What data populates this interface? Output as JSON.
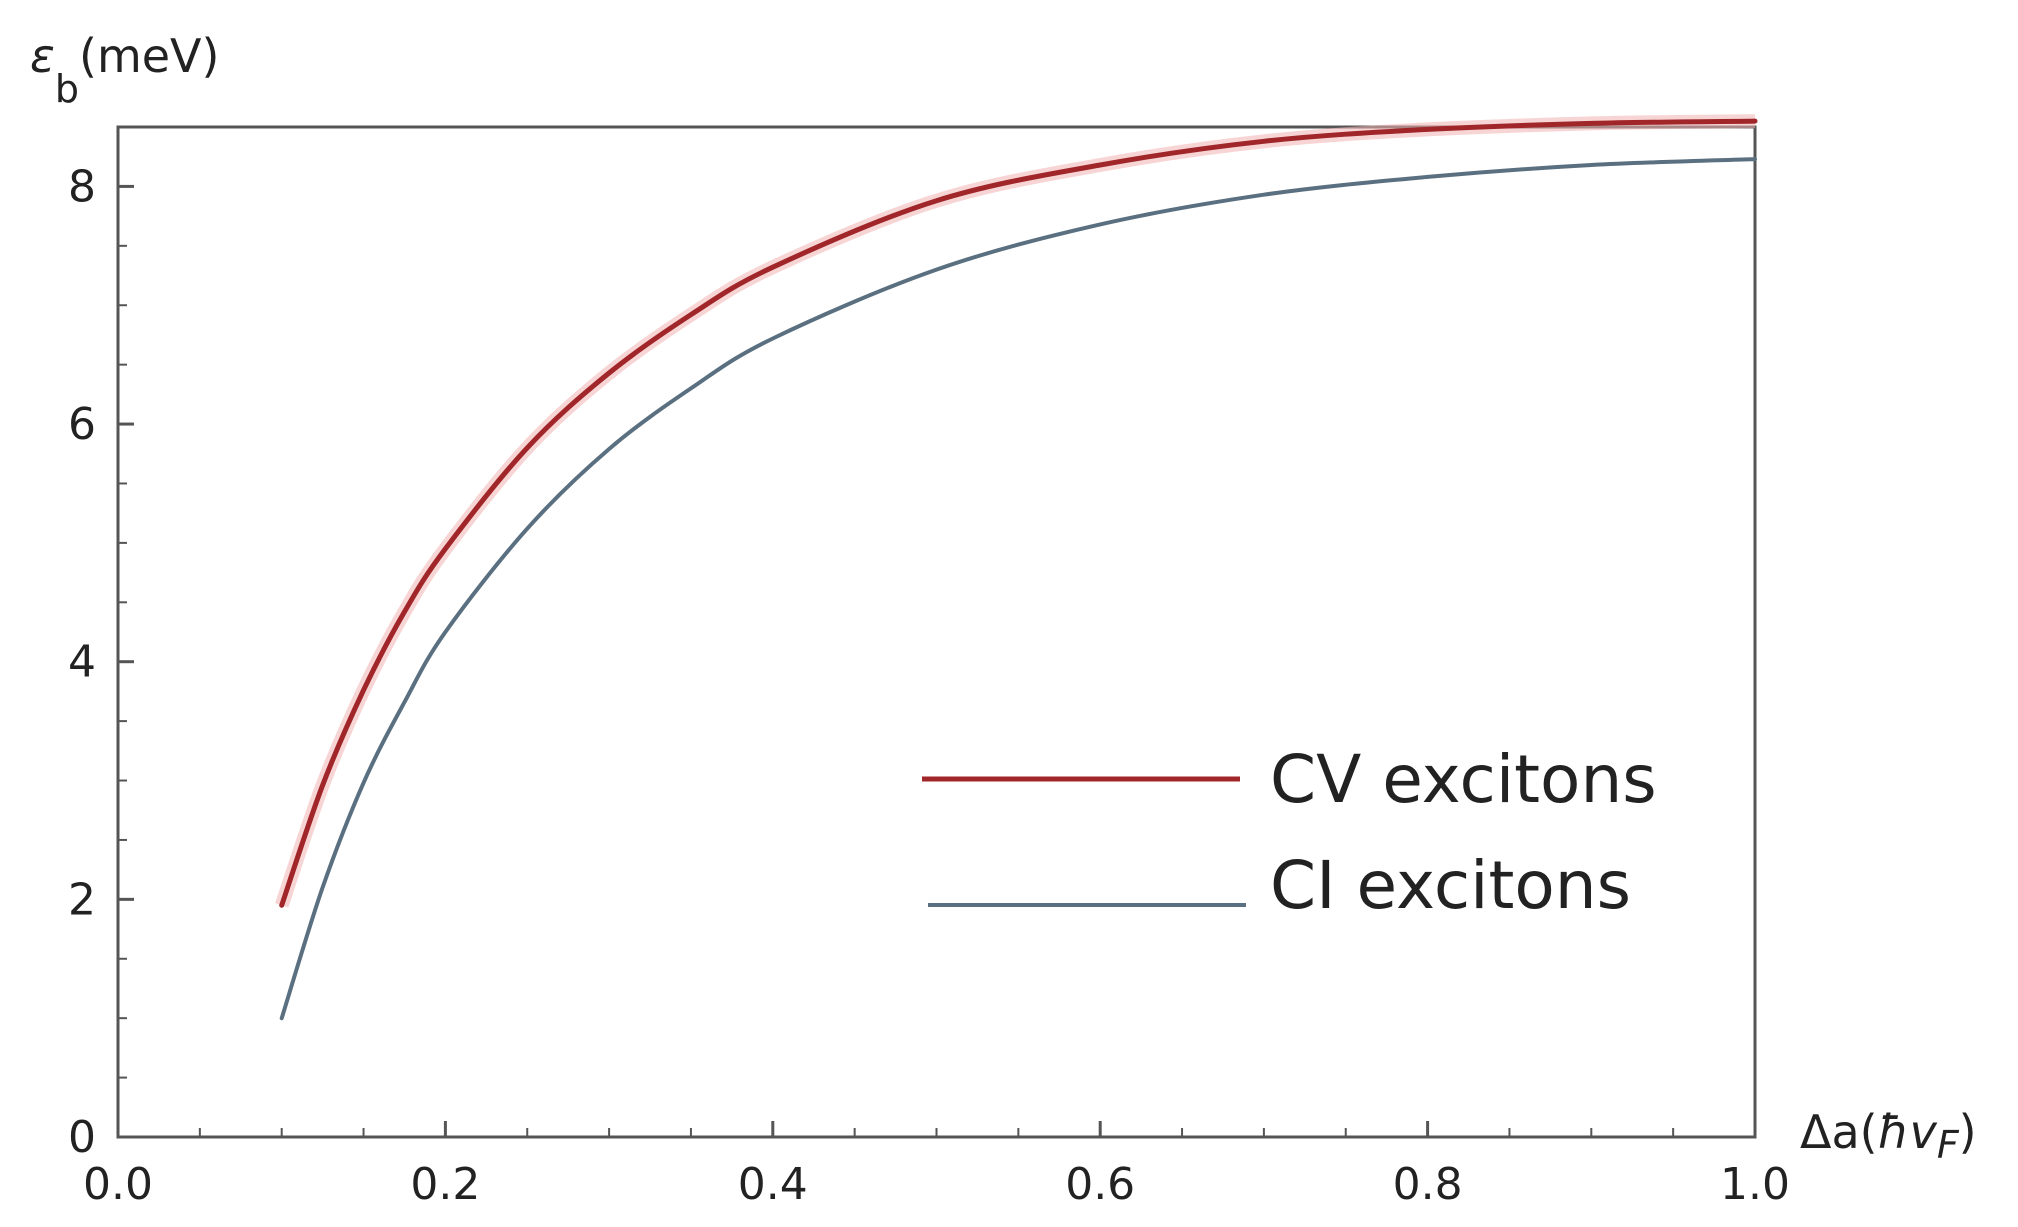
{
  "chart_data": {
    "type": "line",
    "ylabel": "ε_b(meV)",
    "ylabel_parts": {
      "symbol": "ε",
      "subscript": "b",
      "unit": "(meV)"
    },
    "xlabel": "Δa(ħv_F)",
    "xlabel_parts": {
      "prefix": "Δa(",
      "hbar": "ħ",
      "v": "v",
      "subscript": "F",
      "suffix": ")"
    },
    "xlim": [
      0.0,
      1.0
    ],
    "ylim": [
      0,
      8.5
    ],
    "xticks": [
      "0.0",
      "0.2",
      "0.4",
      "0.6",
      "0.8",
      "1.0"
    ],
    "yticks": [
      "0",
      "2",
      "4",
      "6",
      "8"
    ],
    "grid": false,
    "legend_position": "lower-right",
    "x": [
      0.1,
      0.125,
      0.15,
      0.175,
      0.2,
      0.25,
      0.3,
      0.35,
      0.4,
      0.5,
      0.6,
      0.7,
      0.8,
      0.9,
      1.0
    ],
    "series": [
      {
        "name": "CV excitons",
        "color": "#a0262a",
        "values": [
          1.95,
          2.96,
          3.76,
          4.42,
          4.95,
          5.8,
          6.43,
          6.92,
          7.32,
          7.88,
          8.18,
          8.38,
          8.48,
          8.53,
          8.55
        ]
      },
      {
        "name": "CI excitons",
        "color": "#5a7080",
        "values": [
          1.0,
          2.1,
          2.98,
          3.66,
          4.25,
          5.12,
          5.79,
          6.3,
          6.72,
          7.3,
          7.68,
          7.93,
          8.08,
          8.18,
          8.23
        ]
      }
    ]
  }
}
